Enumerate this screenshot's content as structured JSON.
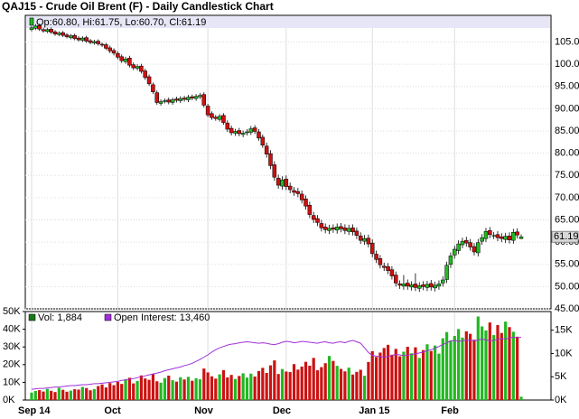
{
  "chart_data": [
    {
      "type": "candlestick",
      "title": "QAJ15 - Crude Oil Brent (F) - Daily Candlestick Chart",
      "info_label": "Op:60.80, Hi:61.75, Lo:60.70, Cl:61.19",
      "last_label": "61.19",
      "up_color": "#22b822",
      "down_color": "#cc1111",
      "categories": [
        "Sep 14",
        null,
        null,
        null,
        null,
        null,
        null,
        null,
        null,
        null,
        null,
        null,
        null,
        null,
        null,
        null,
        null,
        null,
        null,
        null,
        null,
        null,
        "Oct",
        null,
        null,
        null,
        null,
        null,
        null,
        null,
        null,
        null,
        null,
        null,
        null,
        null,
        null,
        null,
        null,
        null,
        null,
        null,
        null,
        null,
        null,
        "Nov",
        null,
        null,
        null,
        null,
        null,
        null,
        null,
        null,
        null,
        null,
        null,
        null,
        null,
        null,
        null,
        null,
        null,
        null,
        null,
        "Dec",
        null,
        null,
        null,
        null,
        null,
        null,
        null,
        null,
        null,
        null,
        null,
        null,
        null,
        null,
        null,
        null,
        null,
        null,
        null,
        null,
        null,
        "Jan 15",
        null,
        null,
        null,
        null,
        null,
        null,
        null,
        null,
        null,
        null,
        null,
        null,
        null,
        null,
        null,
        null,
        null,
        null,
        null,
        null,
        "Feb",
        null,
        null,
        null,
        null,
        null,
        null,
        null,
        null,
        null,
        null,
        null,
        null,
        null,
        null,
        null,
        null,
        null
      ],
      "open": [
        107.8,
        108.1,
        108.7,
        107.8,
        107.4,
        107.9,
        107.3,
        106.7,
        107.1,
        106.6,
        106.0,
        106.5,
        105.9,
        105.4,
        106.0,
        105.3,
        104.8,
        105.2,
        104.5,
        104.4,
        103.7,
        103.1,
        102.4,
        101.7,
        100.6,
        101.4,
        99.9,
        99.1,
        99.6,
        98.5,
        97.2,
        95.4,
        93.6,
        91.2,
        91.7,
        92.0,
        91.4,
        92.2,
        91.8,
        92.4,
        92.0,
        92.7,
        92.3,
        92.7,
        93.2,
        90.6,
        88.9,
        88.1,
        87.6,
        88.5,
        86.8,
        85.6,
        84.5,
        85.1,
        84.2,
        84.6,
        84.7,
        85.7,
        84.8,
        83.6,
        81.6,
        79.9,
        77.4,
        74.4,
        72.6,
        74.2,
        72.6,
        71.6,
        71.4,
        70.8,
        69.7,
        68.3,
        66.0,
        65.3,
        64.2,
        63.4,
        62.6,
        63.2,
        62.7,
        63.5,
        63.2,
        62.4,
        63.2,
        62.5,
        61.4,
        60.2,
        60.9,
        59.8,
        57.3,
        56.3,
        54.6,
        54.5,
        53.8,
        52.6,
        50.6,
        50.1,
        50.8,
        49.9,
        50.6,
        49.6,
        50.4,
        49.8,
        50.7,
        49.7,
        50.1,
        50.8,
        51.6,
        55.0,
        57.1,
        58.1,
        59.4,
        60.4,
        59.9,
        59.0,
        57.6,
        60.2,
        60.8,
        62.6,
        61.5,
        61.7,
        61.2,
        60.6,
        61.4,
        60.4,
        62.3,
        60.8
      ],
      "high": [
        108.6,
        109.0,
        109.1,
        108.2,
        108.2,
        108.3,
        107.7,
        107.4,
        107.5,
        107.0,
        106.8,
        106.9,
        106.3,
        106.3,
        106.4,
        105.7,
        105.5,
        105.6,
        104.9,
        104.8,
        104.2,
        103.6,
        102.9,
        102.2,
        101.7,
        101.9,
        100.4,
        100.0,
        100.1,
        99.0,
        97.7,
        95.9,
        94.1,
        92.1,
        92.3,
        92.5,
        92.5,
        92.7,
        92.8,
        92.9,
        93.1,
        93.2,
        93.3,
        93.5,
        93.7,
        91.1,
        89.4,
        88.6,
        88.8,
        89.0,
        87.4,
        86.2,
        85.5,
        85.7,
        85.1,
        85.4,
        86.1,
        86.3,
        85.4,
        84.2,
        82.4,
        80.7,
        78.2,
        75.2,
        74.8,
        75.0,
        73.4,
        72.4,
        72.2,
        71.6,
        70.5,
        69.1,
        66.8,
        66.1,
        65.0,
        64.2,
        63.9,
        64.0,
        64.2,
        64.3,
        64.0,
        63.9,
        64.0,
        63.3,
        62.2,
        61.6,
        61.7,
        60.6,
        58.1,
        57.1,
        55.4,
        55.3,
        54.6,
        53.4,
        51.4,
        52.6,
        51.6,
        51.2,
        53.0,
        51.0,
        51.2,
        51.3,
        51.5,
        51.1,
        51.4,
        52.3,
        55.6,
        57.7,
        59.2,
        60.4,
        61.0,
        61.2,
        60.7,
        59.8,
        60.7,
        61.8,
        63.2,
        63.4,
        62.3,
        62.5,
        62.0,
        62.1,
        62.2,
        63.0,
        63.1,
        61.75
      ],
      "low": [
        107.4,
        107.7,
        107.5,
        107.1,
        107.0,
        106.8,
        106.4,
        106.3,
        106.1,
        105.8,
        105.6,
        105.4,
        105.1,
        105.0,
        104.8,
        104.5,
        104.4,
        104.2,
        103.9,
        103.2,
        102.5,
        102.0,
        101.1,
        100.3,
        100.1,
        99.3,
        98.7,
        98.6,
        97.9,
        96.5,
        95.1,
        93.3,
        90.9,
        90.7,
        91.2,
        91.0,
        90.9,
        91.4,
        91.3,
        91.6,
        91.5,
        91.9,
        91.8,
        92.2,
        90.3,
        88.1,
        87.5,
        87.3,
        87.1,
        86.4,
        84.8,
        84.0,
        83.9,
        83.8,
        83.6,
        84.0,
        84.1,
        84.3,
        82.8,
        81.2,
        79.0,
        76.4,
        73.8,
        72.0,
        71.8,
        71.7,
        71.0,
        70.4,
        70.1,
        68.7,
        67.3,
        65.4,
        64.3,
        63.6,
        62.4,
        62.0,
        61.8,
        62.1,
        61.9,
        62.2,
        61.8,
        61.6,
        61.5,
        60.7,
        59.6,
        59.4,
        58.8,
        56.6,
        55.3,
        54.1,
        53.5,
        52.8,
        51.6,
        50.0,
        49.5,
        49.3,
        49.3,
        49.1,
        49.0,
        48.8,
        49.2,
        49.0,
        49.1,
        48.9,
        49.3,
        50.0,
        50.8,
        54.2,
        56.3,
        57.3,
        58.6,
        59.0,
        58.1,
        57.0,
        56.8,
        59.4,
        60.0,
        60.9,
        60.7,
        60.2,
        60.0,
        59.8,
        59.7,
        59.6,
        60.8,
        60.7
      ],
      "close": [
        108.2,
        108.6,
        107.9,
        107.5,
        107.8,
        107.2,
        106.8,
        107.0,
        106.5,
        106.2,
        106.4,
        105.8,
        105.5,
        105.9,
        105.2,
        104.9,
        105.1,
        104.6,
        104.3,
        103.6,
        103.0,
        102.5,
        101.6,
        100.8,
        101.2,
        99.8,
        99.2,
        99.5,
        98.4,
        97.0,
        95.6,
        93.8,
        91.4,
        91.6,
        91.8,
        91.5,
        92.0,
        91.9,
        92.3,
        92.1,
        92.6,
        92.4,
        92.8,
        93.0,
        90.8,
        88.6,
        88.0,
        87.8,
        88.3,
        86.9,
        85.4,
        84.6,
        84.9,
        84.4,
        84.5,
        84.8,
        85.5,
        84.9,
        83.4,
        81.8,
        79.8,
        77.2,
        74.6,
        72.8,
        74.0,
        72.5,
        71.8,
        71.2,
        70.9,
        69.5,
        68.1,
        66.2,
        65.1,
        64.4,
        63.2,
        62.8,
        63.1,
        62.9,
        63.4,
        63.0,
        62.6,
        63.1,
        62.3,
        61.5,
        60.4,
        60.8,
        59.6,
        57.4,
        56.1,
        54.9,
        54.3,
        53.6,
        52.4,
        50.8,
        50.3,
        50.6,
        50.1,
        50.4,
        49.8,
        50.2,
        50.0,
        50.5,
        49.9,
        50.3,
        50.6,
        51.5,
        54.8,
        56.9,
        58.4,
        59.6,
        60.2,
        59.8,
        58.9,
        57.8,
        59.9,
        61.0,
        62.4,
        61.7,
        61.5,
        61.0,
        60.8,
        61.3,
        60.5,
        62.2,
        61.6,
        61.19
      ],
      "ylim": [
        45,
        111
      ],
      "yticks": [
        {
          "value": 45,
          "label": "45.00"
        },
        {
          "value": 50,
          "label": "50.00"
        },
        {
          "value": 55,
          "label": "55.00"
        },
        {
          "value": 60,
          "label": "60.00"
        },
        {
          "value": 65,
          "label": "65.00"
        },
        {
          "value": 70,
          "label": "70.00"
        },
        {
          "value": 75,
          "label": "75.00"
        },
        {
          "value": 80,
          "label": "80.00"
        },
        {
          "value": 85,
          "label": "85.00"
        },
        {
          "value": 90,
          "label": "90.00"
        },
        {
          "value": 95,
          "label": "95.00"
        },
        {
          "value": 100,
          "label": "100.0"
        },
        {
          "value": 105,
          "label": "105.0"
        }
      ],
      "grid": true
    },
    {
      "type": "volume",
      "series": [
        {
          "name": "Vol: 1,884",
          "color": "#1a7a1a",
          "values": [
            4200,
            5100,
            5600,
            4800,
            6300,
            5200,
            4500,
            6900,
            5800,
            4700,
            5300,
            6100,
            5900,
            7400,
            6800,
            5500,
            6200,
            7900,
            8800,
            7100,
            9600,
            8400,
            10200,
            9100,
            11800,
            12600,
            9400,
            10800,
            13900,
            12200,
            11400,
            14800,
            10600,
            9800,
            12400,
            13800,
            11200,
            10400,
            12900,
            11600,
            13100,
            10900,
            12300,
            11700,
            17800,
            15600,
            13400,
            12100,
            14500,
            16900,
            12800,
            14200,
            11900,
            13600,
            15100,
            12700,
            14900,
            13300,
            16400,
            18200,
            15300,
            19600,
            22400,
            14700,
            17500,
            16100,
            15800,
            20300,
            17200,
            18900,
            21600,
            19400,
            23800,
            16800,
            18600,
            20800,
            24900,
            22100,
            19300,
            17600,
            16200,
            18300,
            14400,
            15900,
            17100,
            13700,
            21500,
            27600,
            24300,
            26800,
            29400,
            31200,
            25600,
            28900,
            24700,
            27300,
            30100,
            26400,
            29800,
            23800,
            28200,
            31500,
            27700,
            30800,
            26200,
            34900,
            38400,
            33600,
            36200,
            40100,
            35300,
            38800,
            37400,
            34100,
            47200,
            41600,
            39300,
            43800,
            36700,
            42400,
            37900,
            44300,
            41200,
            38600,
            35800,
            1884
          ]
        },
        {
          "name": "Open Interest: 13,460",
          "color": "#a030d8",
          "axis": "y2",
          "values": [
            2300,
            2400,
            2500,
            2500,
            2600,
            2700,
            2800,
            2800,
            2900,
            3000,
            3100,
            3100,
            3200,
            3300,
            3300,
            3400,
            3500,
            3500,
            3600,
            3700,
            3800,
            3900,
            4000,
            4200,
            4300,
            4500,
            4600,
            4800,
            5000,
            5200,
            5400,
            5600,
            5800,
            6000,
            6300,
            6500,
            6700,
            6900,
            7100,
            7400,
            7600,
            7900,
            8300,
            8700,
            9200,
            9700,
            10300,
            10800,
            11200,
            11500,
            11800,
            12000,
            12100,
            12300,
            12400,
            12500,
            12400,
            12300,
            12200,
            12300,
            12200,
            12000,
            11900,
            12100,
            12400,
            12600,
            12500,
            12300,
            12400,
            12600,
            12500,
            12400,
            12300,
            12200,
            12400,
            12500,
            12300,
            12200,
            12400,
            12500,
            12300,
            12600,
            12800,
            12500,
            12200,
            11200,
            10200,
            9600,
            9400,
            9300,
            9200,
            9300,
            9600,
            9800,
            9700,
            9500,
            9600,
            9800,
            9900,
            10100,
            10300,
            10600,
            10800,
            11100,
            11500,
            11900,
            12300,
            12700,
            12800,
            12600,
            12700,
            12900,
            12800,
            12700,
            12900,
            13100,
            12900,
            12700,
            12800,
            13000,
            13200,
            13100,
            13300,
            13500,
            13400,
            13460
          ]
        }
      ],
      "ylim": [
        0,
        50000
      ],
      "yticks": [
        {
          "value": 0,
          "label": "0K"
        },
        {
          "value": 10000,
          "label": "10K"
        },
        {
          "value": 20000,
          "label": "20K"
        },
        {
          "value": 30000,
          "label": "30K"
        },
        {
          "value": 40000,
          "label": "40K"
        },
        {
          "value": 50000,
          "label": "50K"
        }
      ],
      "y2lim": [
        0,
        19000
      ],
      "y2ticks": [
        {
          "value": 0,
          "label": "0K"
        },
        {
          "value": 5000,
          "label": "5K"
        },
        {
          "value": 10000,
          "label": "10K"
        },
        {
          "value": 15000,
          "label": "15K"
        }
      ]
    }
  ]
}
